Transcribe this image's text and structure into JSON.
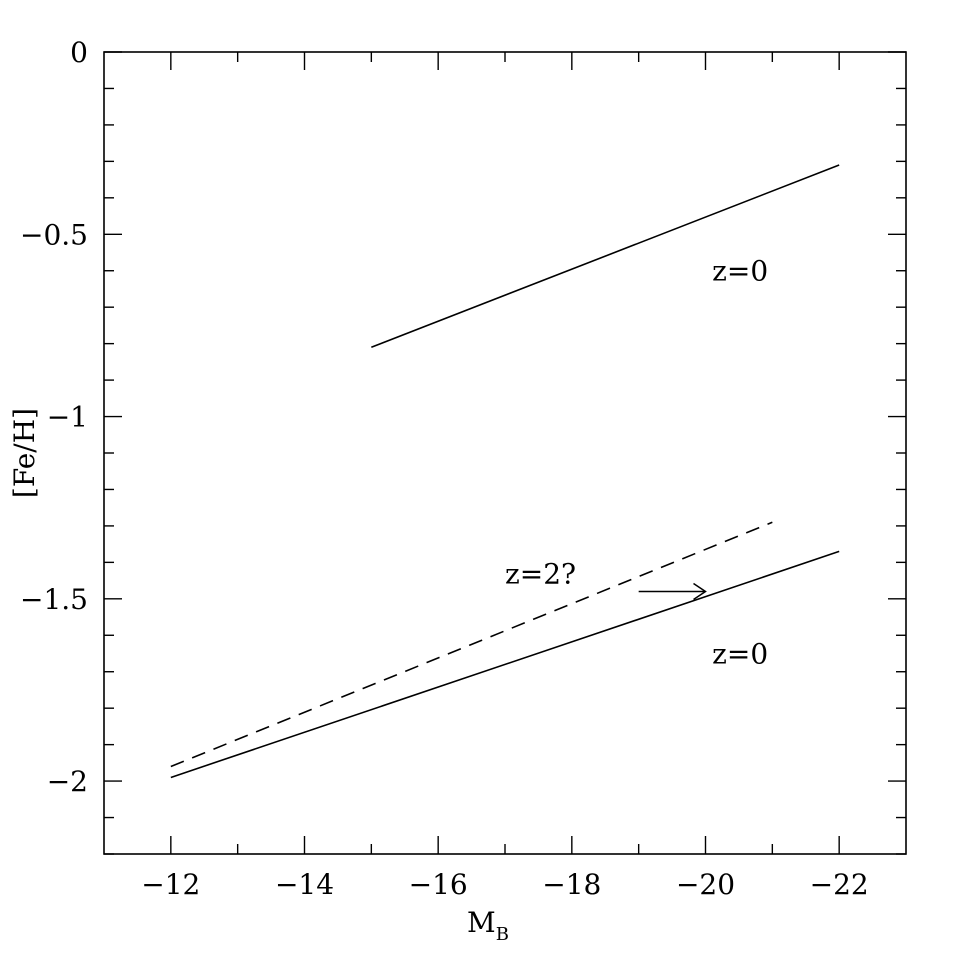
{
  "chart_data": {
    "type": "line",
    "xlabel": "M",
    "xlabel_subscript": "B",
    "ylabel": "[Fe/H]",
    "xlim": [
      -11,
      -23
    ],
    "ylim": [
      -2.2,
      0
    ],
    "x_ticks": [
      -12,
      -14,
      -16,
      -18,
      -20,
      -22
    ],
    "x_tick_labels": [
      "−12",
      "−14",
      "−16",
      "−18",
      "−20",
      "−22"
    ],
    "y_ticks": [
      0,
      -0.5,
      -1,
      -1.5,
      -2
    ],
    "y_tick_labels": [
      "0",
      "−0.5",
      "−1",
      "−1.5",
      "−2"
    ],
    "series": [
      {
        "x": [
          -15,
          -22
        ],
        "y": [
          -0.81,
          -0.31
        ],
        "style": "solid"
      },
      {
        "x": [
          -12,
          -22
        ],
        "y": [
          -1.99,
          -1.37
        ],
        "style": "solid"
      },
      {
        "x": [
          -12,
          -21
        ],
        "y": [
          -1.96,
          -1.29
        ],
        "style": "dashed"
      }
    ],
    "annotations": [
      {
        "text": "z=0",
        "x": -20.1,
        "y": -0.6
      },
      {
        "text": "z=2?",
        "x": -17.0,
        "y": -1.43
      },
      {
        "text": "z=0",
        "x": -20.1,
        "y": -1.65
      }
    ],
    "arrow": {
      "from": [
        -19.0,
        -1.48
      ],
      "to": [
        -20.0,
        -1.48
      ]
    }
  }
}
